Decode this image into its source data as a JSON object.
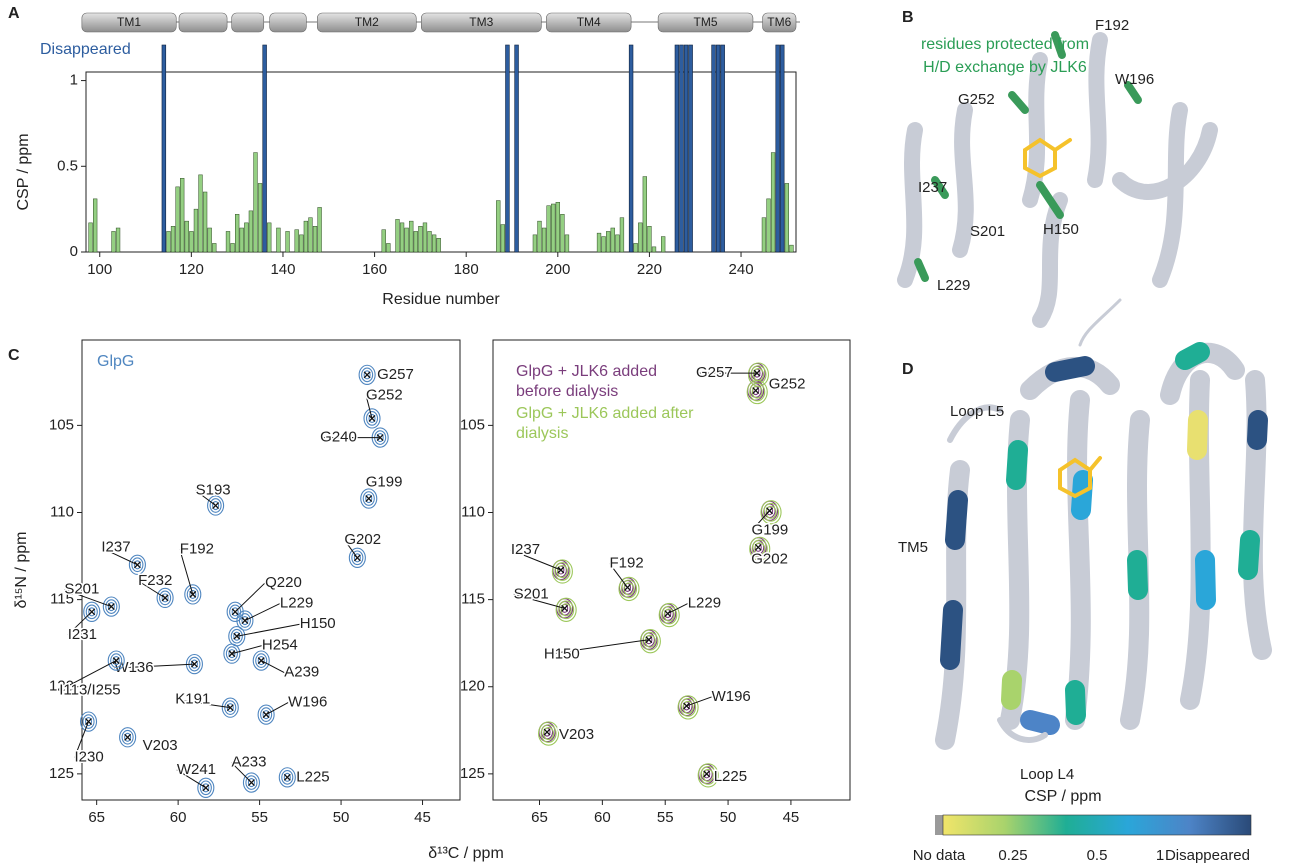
{
  "panel_letters": [
    "A",
    "B",
    "C",
    "D"
  ],
  "chart_data": [
    {
      "type": "bar",
      "xlabel": "Residue number",
      "ylabel": "CSP / ppm",
      "xlim": [
        97,
        252
      ],
      "ylim": [
        0,
        1.05
      ],
      "xticks": [
        100,
        120,
        140,
        160,
        180,
        200,
        220,
        240
      ],
      "yticks": [
        0,
        0.5,
        1
      ],
      "topology": {
        "labels": [
          "TM1",
          null,
          null,
          null,
          "TM2",
          "TM3",
          "TM4",
          "TM5",
          "TM6"
        ],
        "starts": [
          96.1,
          117.3,
          128.8,
          137.1,
          147.5,
          170.2,
          197.5,
          221.9,
          244.7
        ],
        "ends": [
          116.7,
          127.8,
          135.8,
          145.1,
          169.1,
          196.4,
          216,
          242.6,
          252
        ]
      },
      "series": [
        {
          "color": "#94cf82",
          "x": [
            98,
            99,
            103,
            104,
            115,
            116,
            117,
            118,
            119,
            120,
            121,
            122,
            123,
            124,
            125,
            128,
            129,
            130,
            131,
            132,
            133,
            134,
            135,
            137,
            139,
            141,
            143,
            144,
            145,
            146,
            147,
            148,
            162,
            163,
            165,
            166,
            167,
            168,
            169,
            170,
            171,
            172,
            173,
            174,
            187,
            188,
            195,
            196,
            197,
            198,
            199,
            200,
            201,
            202,
            209,
            210,
            211,
            212,
            213,
            214,
            217,
            218,
            219,
            220,
            221,
            223,
            245,
            246,
            247,
            250,
            251
          ],
          "values": [
            0.17,
            0.31,
            0.12,
            0.14,
            0.12,
            0.15,
            0.38,
            0.43,
            0.18,
            0.12,
            0.25,
            0.45,
            0.35,
            0.14,
            0.05,
            0.12,
            0.05,
            0.22,
            0.14,
            0.17,
            0.24,
            0.58,
            0.4,
            0.17,
            0.14,
            0.12,
            0.13,
            0.1,
            0.18,
            0.2,
            0.15,
            0.26,
            0.13,
            0.05,
            0.19,
            0.17,
            0.14,
            0.18,
            0.12,
            0.15,
            0.17,
            0.12,
            0.1,
            0.08,
            0.3,
            0.16,
            0.1,
            0.18,
            0.14,
            0.27,
            0.28,
            0.29,
            0.22,
            0.1,
            0.11,
            0.09,
            0.12,
            0.14,
            0.1,
            0.2,
            0.05,
            0.17,
            0.44,
            0.15,
            0.03,
            0.09,
            0.2,
            0.31,
            0.58,
            0.4,
            0.04
          ]
        },
        {
          "name": "Disappeared",
          "color": "#2d5d9f",
          "x": [
            114,
            136,
            189,
            191,
            216,
            226,
            227,
            228,
            229,
            234,
            235,
            236,
            248,
            249
          ]
        }
      ]
    },
    {
      "type": "scatter",
      "xlim": [
        65.9,
        42.7
      ],
      "ylim": [
        126.5,
        100.1
      ],
      "xticks": [
        65,
        60,
        55,
        50,
        45
      ],
      "yticks": [
        105,
        110,
        115,
        120,
        125
      ],
      "series": [
        {
          "name": "GlpG",
          "color": "#4f86c0"
        }
      ],
      "point_labels": [
        "G257",
        "G252",
        "G240",
        "G199",
        "G202",
        "S193",
        "I237",
        "F232",
        "F192",
        "S201",
        "I231",
        "Q220",
        "L229",
        "H150",
        "H254",
        "W136",
        "A239",
        "I113/I255",
        "K191",
        "W196",
        "V203",
        "I230",
        "W241",
        "A233",
        "L225"
      ],
      "x": [
        48.4,
        48.1,
        47.6,
        48.3,
        49.0,
        57.7,
        62.5,
        60.8,
        59.1,
        64.1,
        65.3,
        56.5,
        55.9,
        56.4,
        56.7,
        59.0,
        54.9,
        63.8,
        56.8,
        54.6,
        63.1,
        65.5,
        58.3,
        55.5,
        53.3
      ],
      "values": [
        102.1,
        104.6,
        105.7,
        109.2,
        112.6,
        109.6,
        113.0,
        114.9,
        114.7,
        115.4,
        115.7,
        115.7,
        116.2,
        117.1,
        118.1,
        118.7,
        118.5,
        118.5,
        121.2,
        121.6,
        122.9,
        122.0,
        125.8,
        125.5,
        125.2
      ]
    },
    {
      "type": "scatter",
      "xlim": [
        68.7,
        40.3
      ],
      "ylim": [
        126.5,
        100.1
      ],
      "xticks": [
        65,
        60,
        55,
        50,
        45
      ],
      "yticks": [
        105,
        110,
        115,
        120,
        125
      ],
      "series": [
        {
          "name": "GlpG + JLK6 added before dialysis",
          "color": "#7a3d7c"
        },
        {
          "name": "GlpG + JLK6 added after dialysis",
          "color": "#9cc75a"
        }
      ],
      "point_labels": [
        "G257",
        "G252",
        "G199",
        "G202",
        "I237",
        "F192",
        "S201",
        "L229",
        "H150",
        "W196",
        "V203",
        "L225"
      ],
      "x": [
        47.7,
        47.8,
        46.7,
        47.6,
        63.3,
        58.0,
        63.0,
        54.8,
        56.3,
        53.3,
        64.4,
        51.7
      ],
      "values": [
        102.0,
        103.0,
        109.9,
        112.0,
        113.3,
        114.3,
        115.5,
        115.8,
        117.3,
        121.1,
        122.6,
        125.0
      ]
    }
  ],
  "panel_c": {
    "xlabel": "δ¹³C / ppm",
    "ylabel": "δ¹⁵N / ppm"
  },
  "panel_b": {
    "note_lines": [
      "residues protected from",
      "H/D exchange by JLK6"
    ],
    "residue_labels": [
      "F192",
      "W196",
      "G252",
      "I237",
      "S201",
      "H150",
      "L229"
    ]
  },
  "panel_d": {
    "labels": [
      "Loop L5",
      "TM5",
      "Loop L4"
    ],
    "colorbar": {
      "label": "CSP / ppm",
      "ticks": [
        "No data",
        0.25,
        0.5,
        1,
        "Disappeared"
      ]
    }
  }
}
